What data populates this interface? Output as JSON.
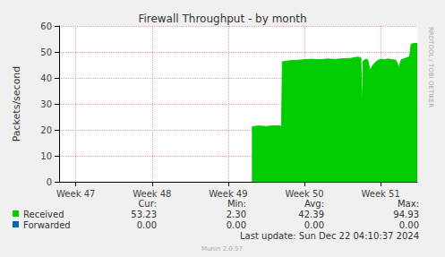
{
  "chart_data": {
    "type": "area",
    "title": "Firewall Throughput - by month",
    "ylabel": "Packets/second",
    "x": [
      49.31,
      49.4,
      49.5,
      49.6,
      49.7,
      49.71,
      49.8,
      49.9,
      50.0,
      50.1,
      50.2,
      50.3,
      50.4,
      50.5,
      50.6,
      50.7,
      50.74,
      50.755,
      50.77,
      50.8,
      50.83,
      50.86,
      50.9,
      50.95,
      51.0,
      51.05,
      51.1,
      51.15,
      51.2,
      51.24,
      51.27,
      51.32,
      51.38,
      51.4,
      51.44,
      51.48
    ],
    "series": [
      {
        "name": "Received",
        "color": "#00CC00",
        "values": [
          21.2,
          21.5,
          21.3,
          21.6,
          21.4,
          46.2,
          46.6,
          46.8,
          47.0,
          47.2,
          47.0,
          47.3,
          47.1,
          47.4,
          47.5,
          48.0,
          47.8,
          27.0,
          46.5,
          47.2,
          47.0,
          43.0,
          45.0,
          46.5,
          47.2,
          47.0,
          47.3,
          47.0,
          46.8,
          44.0,
          47.0,
          47.5,
          48.2,
          53.0,
          53.3,
          53.23
        ],
        "summary": [
          {
            "value": 53.23,
            "label": "53.23"
          },
          {
            "value": 2.3,
            "label": "2.30"
          },
          {
            "value": 42.39,
            "label": "42.39"
          },
          {
            "value": 94.93,
            "label": "94.93"
          }
        ]
      },
      {
        "name": "Forwarded",
        "color": "#0066B3",
        "values": [
          0,
          0,
          0,
          0,
          0,
          0,
          0,
          0,
          0,
          0,
          0,
          0,
          0,
          0,
          0,
          0,
          0,
          0,
          0,
          0,
          0,
          0,
          0,
          0,
          0,
          0,
          0,
          0,
          0,
          0,
          0,
          0,
          0,
          0,
          0,
          0
        ],
        "summary": [
          {
            "value": 0,
            "label": "0.00"
          },
          {
            "value": 0,
            "label": "0.00"
          },
          {
            "value": 0,
            "label": "0.00"
          },
          {
            "value": 0,
            "label": "0.00"
          }
        ]
      }
    ],
    "summary_columns": [
      "Cur:",
      "Min:",
      "Avg:",
      "Max:"
    ],
    "xlim": [
      46.78,
      51.48
    ],
    "xticks": [
      {
        "value": 47,
        "label": "Week 47"
      },
      {
        "value": 48,
        "label": "Week 48"
      },
      {
        "value": 49,
        "label": "Week 49"
      },
      {
        "value": 50,
        "label": "Week 50"
      },
      {
        "value": 51,
        "label": "Week 51"
      }
    ],
    "ylim": [
      0,
      60
    ],
    "yticks": [
      0,
      10,
      20,
      30,
      40,
      50,
      60
    ],
    "grid": true,
    "annotations": [
      "Last update: Sun Dec 22 04:10:37 2024",
      "Munin 2.0.57",
      "RRDTOOL / TOBI OETIKER"
    ]
  }
}
